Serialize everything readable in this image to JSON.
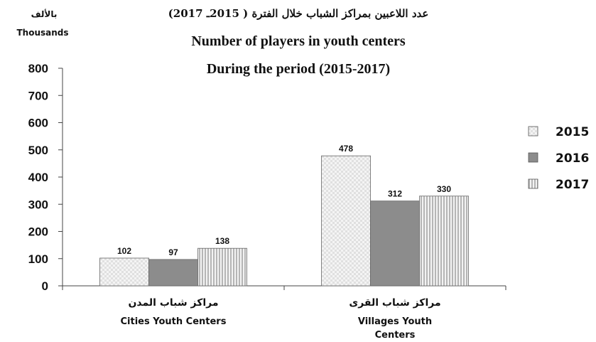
{
  "header": {
    "title_ar": "عدد اللاعبين بمراكز الشباب خلال الفترة ( 2015ـ 2017)",
    "title_en": "Number of players in youth centers",
    "subtitle_en": "During the period (2015-2017)",
    "unit_ar": "بالألف",
    "unit_en": "Thousands"
  },
  "chart_data": {
    "type": "bar",
    "title": "Number of players in youth centers During the period (2015-2017)",
    "ylabel": "Thousands",
    "ylim": [
      0,
      800
    ],
    "yticks": [
      "0",
      "100",
      "200",
      "300",
      "400",
      "500",
      "600",
      "700",
      "800"
    ],
    "categories": [
      {
        "ar": "مراكز شباب المدن",
        "en": "Cities Youth Centers",
        "en_lines": [
          "Cities Youth Centers"
        ]
      },
      {
        "ar": "مراكز شباب القرى",
        "en": "Villages Youth Centers",
        "en_lines": [
          "Villages Youth",
          "Centers"
        ]
      }
    ],
    "series": [
      {
        "name": "2015",
        "values": [
          102,
          478
        ],
        "color": "#f2f2f2",
        "pattern": "checker"
      },
      {
        "name": "2016",
        "values": [
          97,
          312
        ],
        "color": "#8c8c8c",
        "pattern": "solid"
      },
      {
        "name": "2017",
        "values": [
          138,
          330
        ],
        "color": "#d9d9d9",
        "pattern": "vertical-lines"
      }
    ],
    "legend": {
      "position": "right",
      "entries": [
        "2015",
        "2016",
        "2017"
      ]
    },
    "grid": false
  }
}
